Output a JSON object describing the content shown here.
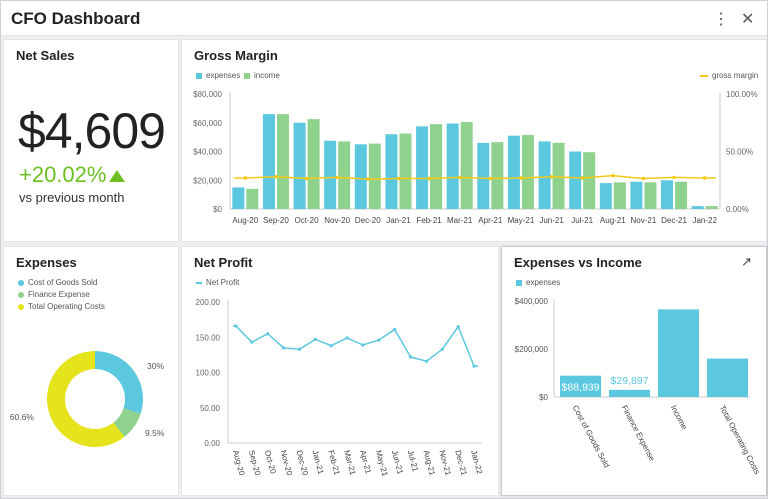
{
  "window": {
    "title": "CFO Dashboard",
    "menu_icon": "more-vertical-icon",
    "close_icon": "close-icon",
    "menu_glyph": "⋮",
    "close_glyph": "✕"
  },
  "net_sales": {
    "title": "Net Sales",
    "value": "$4,609",
    "change": "+20.02%",
    "change_icon": "triangle-up-icon",
    "comparison": "vs previous month",
    "accent": "#6cc024"
  },
  "colors": {
    "expenses": "#5bc8df",
    "income": "#8ed28e",
    "gross_margin": "#f5c918",
    "net_profit": "#5bc8df",
    "tooc": "#e5e31c"
  },
  "chart_data": [
    {
      "id": "gross_margin",
      "title": "Gross Margin",
      "type": "bar",
      "legend": [
        "expenses",
        "income",
        "gross margin"
      ],
      "categories": [
        "Aug-20",
        "Sep-20",
        "Oct-20",
        "Nov-20",
        "Dec-20",
        "Jan-21",
        "Feb-21",
        "Mar-21",
        "Apr-21",
        "May-21",
        "Jun-21",
        "Jul-21",
        "Aug-21",
        "Nov-21",
        "Dec-21",
        "Jan-22"
      ],
      "series": [
        {
          "name": "expenses",
          "values": [
            15000,
            66000,
            60000,
            47500,
            45000,
            52000,
            57500,
            59500,
            46000,
            51000,
            47000,
            40000,
            18000,
            19000,
            20000,
            2000
          ]
        },
        {
          "name": "income",
          "values": [
            14000,
            66000,
            62500,
            47000,
            45500,
            52500,
            59000,
            60500,
            46500,
            51500,
            46000,
            39500,
            18500,
            18500,
            19000,
            2000
          ]
        },
        {
          "name": "gross margin",
          "type": "line",
          "axis": "right",
          "values": [
            27,
            28,
            26.5,
            27.5,
            26,
            26.5,
            26.5,
            27.5,
            26.5,
            27,
            28,
            27,
            29,
            26.5,
            27.5,
            27
          ]
        }
      ],
      "yticks": [
        "$0",
        "$20,000",
        "$40,000",
        "$60,000",
        "$80,000"
      ],
      "ylim": [
        0,
        80000
      ],
      "y2ticks": [
        "0.00%",
        "50.00%",
        "100.00%"
      ],
      "y2lim": [
        0,
        100
      ],
      "legend_position": "top"
    },
    {
      "id": "expenses",
      "title": "Expenses",
      "type": "pie",
      "donut": true,
      "categories": [
        "Cost of Goods Sold",
        "Finance Expense",
        "Total Operating Costs"
      ],
      "values": [
        30,
        9.5,
        60.6
      ],
      "labels": [
        "30%",
        "9.5%",
        "60.6%"
      ],
      "legend_position": "top-left"
    },
    {
      "id": "net_profit",
      "title": "Net Profit",
      "type": "line",
      "legend": [
        "Net Profit"
      ],
      "categories": [
        "Aug-20",
        "Sep-20",
        "Oct-20",
        "Nov-20",
        "Dec-20",
        "Jan-21",
        "Feb-21",
        "Mar-21",
        "Apr-21",
        "May-21",
        "Jun-21",
        "Jul-21",
        "Aug-21",
        "Nov-21",
        "Dec-21",
        "Jan-22"
      ],
      "values": [
        166,
        143,
        155,
        135,
        133,
        147,
        138,
        149,
        139,
        146,
        161,
        122,
        116,
        133,
        165,
        109
      ],
      "yticks": [
        "0.00",
        "50.00",
        "100.00",
        "150.00",
        "200.00"
      ],
      "ylim": [
        0,
        200
      ]
    },
    {
      "id": "expenses_vs_income",
      "title": "Expenses vs Income",
      "type": "bar",
      "legend": [
        "expenses"
      ],
      "categories": [
        "Cost of Goods Sold",
        "Finance Expense",
        "Income",
        "Total Operating Costs"
      ],
      "values": [
        88939,
        29897,
        365000,
        160000
      ],
      "data_labels": [
        "$88,939",
        "$29,897",
        "",
        ""
      ],
      "yticks": [
        "$0",
        "$200,000",
        "$400,000"
      ],
      "ylim": [
        0,
        400000
      ],
      "expand_icon": "expand-arrow-icon",
      "expand_glyph": "↗"
    }
  ]
}
